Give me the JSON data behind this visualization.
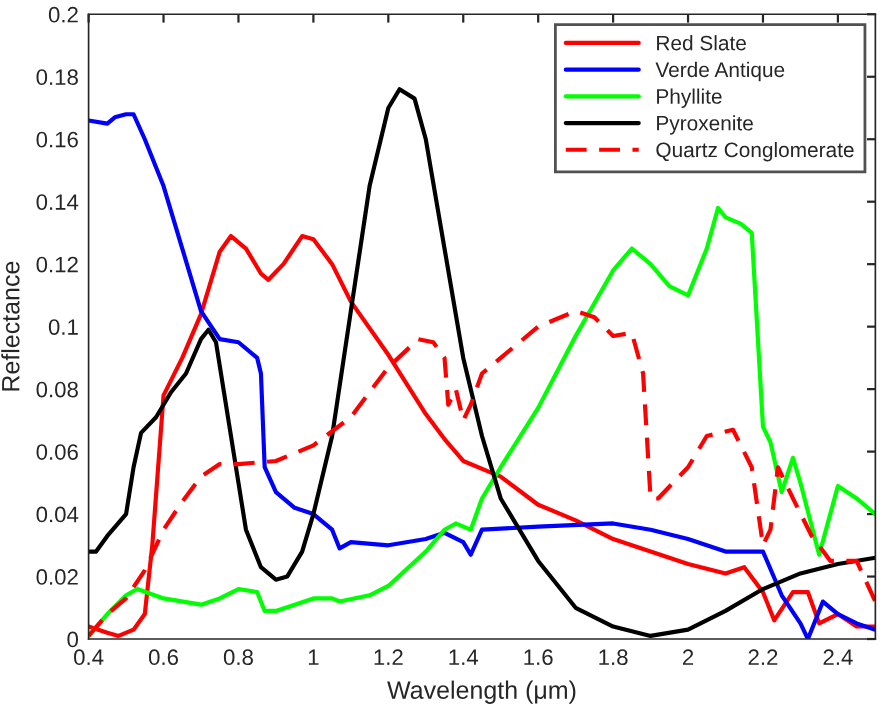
{
  "chart_data": {
    "type": "line",
    "xlabel": "Wavelength (μm)",
    "ylabel": "Reflectance",
    "xlim": [
      0.4,
      2.5
    ],
    "xticks": [
      0.4,
      0.6,
      0.8,
      1,
      1.2,
      1.4,
      1.6,
      1.8,
      2,
      2.2,
      2.4
    ],
    "ylim": [
      0,
      0.2
    ],
    "yticks": [
      0,
      0.02,
      0.04,
      0.06,
      0.08,
      0.1,
      0.12,
      0.14,
      0.16,
      0.18,
      0.2
    ],
    "grid": false,
    "legend": "top right",
    "marker": "none",
    "series": [
      {
        "name": "Red Slate",
        "color": "#ff0000",
        "line_style": "solid",
        "x": [
          0.4,
          0.45,
          0.48,
          0.52,
          0.55,
          0.57,
          0.6,
          0.65,
          0.7,
          0.75,
          0.78,
          0.82,
          0.86,
          0.88,
          0.92,
          0.97,
          1.0,
          1.05,
          1.1,
          1.2,
          1.3,
          1.35,
          1.4,
          1.46,
          1.5,
          1.6,
          1.7,
          1.8,
          1.9,
          2.0,
          2.1,
          2.15,
          2.2,
          2.23,
          2.28,
          2.32,
          2.35,
          2.4,
          2.45,
          2.5
        ],
        "values": [
          0.004,
          0.002,
          0.001,
          0.003,
          0.008,
          0.03,
          0.078,
          0.09,
          0.104,
          0.124,
          0.129,
          0.125,
          0.117,
          0.115,
          0.12,
          0.129,
          0.128,
          0.12,
          0.108,
          0.091,
          0.072,
          0.064,
          0.057,
          0.054,
          0.052,
          0.043,
          0.038,
          0.032,
          0.028,
          0.024,
          0.021,
          0.023,
          0.015,
          0.006,
          0.015,
          0.015,
          0.005,
          0.008,
          0.004,
          0.004
        ]
      },
      {
        "name": "Verde Antique",
        "color": "#0000ff",
        "line_style": "solid",
        "x": [
          0.4,
          0.45,
          0.47,
          0.5,
          0.52,
          0.55,
          0.6,
          0.65,
          0.7,
          0.75,
          0.8,
          0.85,
          0.86,
          0.87,
          0.9,
          0.95,
          1.0,
          1.05,
          1.07,
          1.1,
          1.2,
          1.3,
          1.35,
          1.4,
          1.42,
          1.45,
          1.6,
          1.8,
          1.9,
          2.0,
          2.1,
          2.2,
          2.25,
          2.3,
          2.32,
          2.36,
          2.4,
          2.45,
          2.5
        ],
        "values": [
          0.166,
          0.165,
          0.167,
          0.168,
          0.168,
          0.16,
          0.145,
          0.125,
          0.105,
          0.096,
          0.095,
          0.09,
          0.085,
          0.055,
          0.047,
          0.042,
          0.04,
          0.035,
          0.029,
          0.031,
          0.03,
          0.032,
          0.034,
          0.031,
          0.027,
          0.035,
          0.036,
          0.037,
          0.035,
          0.032,
          0.028,
          0.028,
          0.014,
          0.005,
          0.0,
          0.012,
          0.008,
          0.005,
          0.003
        ]
      },
      {
        "name": "Phyllite",
        "color": "#00ff00",
        "line_style": "solid",
        "x": [
          0.4,
          0.45,
          0.5,
          0.53,
          0.6,
          0.7,
          0.75,
          0.8,
          0.85,
          0.87,
          0.9,
          1.0,
          1.05,
          1.07,
          1.15,
          1.2,
          1.3,
          1.35,
          1.38,
          1.4,
          1.42,
          1.45,
          1.5,
          1.6,
          1.7,
          1.8,
          1.85,
          1.9,
          1.95,
          2.0,
          2.05,
          2.08,
          2.1,
          2.14,
          2.17,
          2.2,
          2.22,
          2.25,
          2.28,
          2.3,
          2.35,
          2.4,
          2.45,
          2.5
        ],
        "values": [
          0.001,
          0.008,
          0.014,
          0.016,
          0.013,
          0.011,
          0.013,
          0.016,
          0.015,
          0.009,
          0.009,
          0.013,
          0.013,
          0.012,
          0.014,
          0.017,
          0.028,
          0.035,
          0.037,
          0.036,
          0.035,
          0.045,
          0.055,
          0.074,
          0.097,
          0.118,
          0.125,
          0.12,
          0.113,
          0.11,
          0.125,
          0.138,
          0.135,
          0.133,
          0.13,
          0.068,
          0.063,
          0.047,
          0.058,
          0.05,
          0.027,
          0.049,
          0.045,
          0.04
        ]
      },
      {
        "name": "Pyroxenite",
        "color": "#000000",
        "line_style": "solid",
        "x": [
          0.4,
          0.42,
          0.45,
          0.5,
          0.52,
          0.54,
          0.58,
          0.62,
          0.66,
          0.7,
          0.72,
          0.74,
          0.78,
          0.82,
          0.86,
          0.9,
          0.93,
          0.97,
          1.0,
          1.05,
          1.1,
          1.15,
          1.2,
          1.23,
          1.27,
          1.3,
          1.35,
          1.4,
          1.45,
          1.5,
          1.6,
          1.7,
          1.8,
          1.9,
          2.0,
          2.1,
          2.2,
          2.3,
          2.4,
          2.5
        ],
        "values": [
          0.028,
          0.028,
          0.033,
          0.04,
          0.055,
          0.066,
          0.071,
          0.079,
          0.085,
          0.096,
          0.099,
          0.095,
          0.065,
          0.035,
          0.023,
          0.019,
          0.02,
          0.028,
          0.04,
          0.065,
          0.105,
          0.145,
          0.17,
          0.176,
          0.173,
          0.16,
          0.125,
          0.09,
          0.065,
          0.045,
          0.025,
          0.01,
          0.004,
          0.001,
          0.003,
          0.009,
          0.016,
          0.021,
          0.024,
          0.026
        ]
      },
      {
        "name": "Quartz Conglomerate",
        "color": "#ff0000",
        "line_style": "dashed",
        "x": [
          0.4,
          0.45,
          0.5,
          0.55,
          0.6,
          0.65,
          0.7,
          0.75,
          0.8,
          0.9,
          1.0,
          1.1,
          1.2,
          1.28,
          1.32,
          1.35,
          1.36,
          1.38,
          1.4,
          1.42,
          1.45,
          1.5,
          1.6,
          1.7,
          1.75,
          1.8,
          1.85,
          1.88,
          1.9,
          1.92,
          2.0,
          2.05,
          2.12,
          2.17,
          2.2,
          2.22,
          2.24,
          2.28,
          2.33,
          2.38,
          2.45,
          2.5
        ],
        "values": [
          0.001,
          0.008,
          0.013,
          0.022,
          0.035,
          0.044,
          0.052,
          0.056,
          0.056,
          0.057,
          0.062,
          0.071,
          0.087,
          0.096,
          0.095,
          0.09,
          0.075,
          0.08,
          0.07,
          0.075,
          0.085,
          0.09,
          0.1,
          0.105,
          0.103,
          0.097,
          0.098,
          0.085,
          0.045,
          0.045,
          0.055,
          0.065,
          0.067,
          0.055,
          0.03,
          0.035,
          0.055,
          0.045,
          0.033,
          0.025,
          0.025,
          0.012
        ]
      }
    ]
  }
}
